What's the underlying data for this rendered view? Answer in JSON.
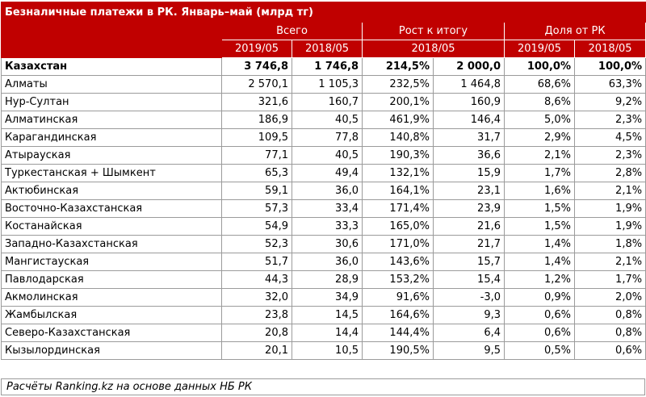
{
  "title": "Безналичные платежи в РК. Январь–май (млрд тг)",
  "header": {
    "groups": [
      "Всего",
      "Рост к итогу",
      "Доля от РК"
    ],
    "sub": [
      "2019/05",
      "2018/05",
      "2018/05",
      "2019/05",
      "2018/05"
    ]
  },
  "rows": [
    {
      "name": "Казахстан",
      "v2019": "3 746,8",
      "v2018": "1 746,8",
      "growth_pct": "214,5%",
      "growth_abs": "2 000,0",
      "share2019": "100,0%",
      "share2018": "100,0%"
    },
    {
      "name": "Алматы",
      "v2019": "2 570,1",
      "v2018": "1 105,3",
      "growth_pct": "232,5%",
      "growth_abs": "1 464,8",
      "share2019": "68,6%",
      "share2018": "63,3%"
    },
    {
      "name": "Нур-Султан",
      "v2019": "321,6",
      "v2018": "160,7",
      "growth_pct": "200,1%",
      "growth_abs": "160,9",
      "share2019": "8,6%",
      "share2018": "9,2%"
    },
    {
      "name": "Алматинская",
      "v2019": "186,9",
      "v2018": "40,5",
      "growth_pct": "461,9%",
      "growth_abs": "146,4",
      "share2019": "5,0%",
      "share2018": "2,3%"
    },
    {
      "name": "Карагандинская",
      "v2019": "109,5",
      "v2018": "77,8",
      "growth_pct": "140,8%",
      "growth_abs": "31,7",
      "share2019": "2,9%",
      "share2018": "4,5%"
    },
    {
      "name": "Атырауская",
      "v2019": "77,1",
      "v2018": "40,5",
      "growth_pct": "190,3%",
      "growth_abs": "36,6",
      "share2019": "2,1%",
      "share2018": "2,3%"
    },
    {
      "name": "Туркестанская + Шымкент",
      "v2019": "65,3",
      "v2018": "49,4",
      "growth_pct": "132,1%",
      "growth_abs": "15,9",
      "share2019": "1,7%",
      "share2018": "2,8%"
    },
    {
      "name": "Актюбинская",
      "v2019": "59,1",
      "v2018": "36,0",
      "growth_pct": "164,1%",
      "growth_abs": "23,1",
      "share2019": "1,6%",
      "share2018": "2,1%"
    },
    {
      "name": "Восточно-Казахстанская",
      "v2019": "57,3",
      "v2018": "33,4",
      "growth_pct": "171,4%",
      "growth_abs": "23,9",
      "share2019": "1,5%",
      "share2018": "1,9%"
    },
    {
      "name": "Костанайская",
      "v2019": "54,9",
      "v2018": "33,3",
      "growth_pct": "165,0%",
      "growth_abs": "21,6",
      "share2019": "1,5%",
      "share2018": "1,9%"
    },
    {
      "name": "Западно-Казахстанская",
      "v2019": "52,3",
      "v2018": "30,6",
      "growth_pct": "171,0%",
      "growth_abs": "21,7",
      "share2019": "1,4%",
      "share2018": "1,8%"
    },
    {
      "name": "Мангистауская",
      "v2019": "51,7",
      "v2018": "36,0",
      "growth_pct": "143,6%",
      "growth_abs": "15,7",
      "share2019": "1,4%",
      "share2018": "2,1%"
    },
    {
      "name": "Павлодарская",
      "v2019": "44,3",
      "v2018": "28,9",
      "growth_pct": "153,2%",
      "growth_abs": "15,4",
      "share2019": "1,2%",
      "share2018": "1,7%"
    },
    {
      "name": "Акмолинская",
      "v2019": "32,0",
      "v2018": "34,9",
      "growth_pct": "91,6%",
      "growth_abs": "-3,0",
      "share2019": "0,9%",
      "share2018": "2,0%"
    },
    {
      "name": "Жамбылская",
      "v2019": "23,8",
      "v2018": "14,5",
      "growth_pct": "164,6%",
      "growth_abs": "9,3",
      "share2019": "0,6%",
      "share2018": "0,8%"
    },
    {
      "name": "Северо-Казахстанская",
      "v2019": "20,8",
      "v2018": "14,4",
      "growth_pct": "144,4%",
      "growth_abs": "6,4",
      "share2019": "0,6%",
      "share2018": "0,8%"
    },
    {
      "name": "Кызылординская",
      "v2019": "20,1",
      "v2018": "10,5",
      "growth_pct": "190,5%",
      "growth_abs": "9,5",
      "share2019": "0,5%",
      "share2018": "0,6%"
    }
  ],
  "footer": "Расчёты Ranking.kz на основе данных НБ РК",
  "colors": {
    "header_bg": "#c00000",
    "header_text": "#ffffff",
    "grid": "#9b9b9b"
  }
}
